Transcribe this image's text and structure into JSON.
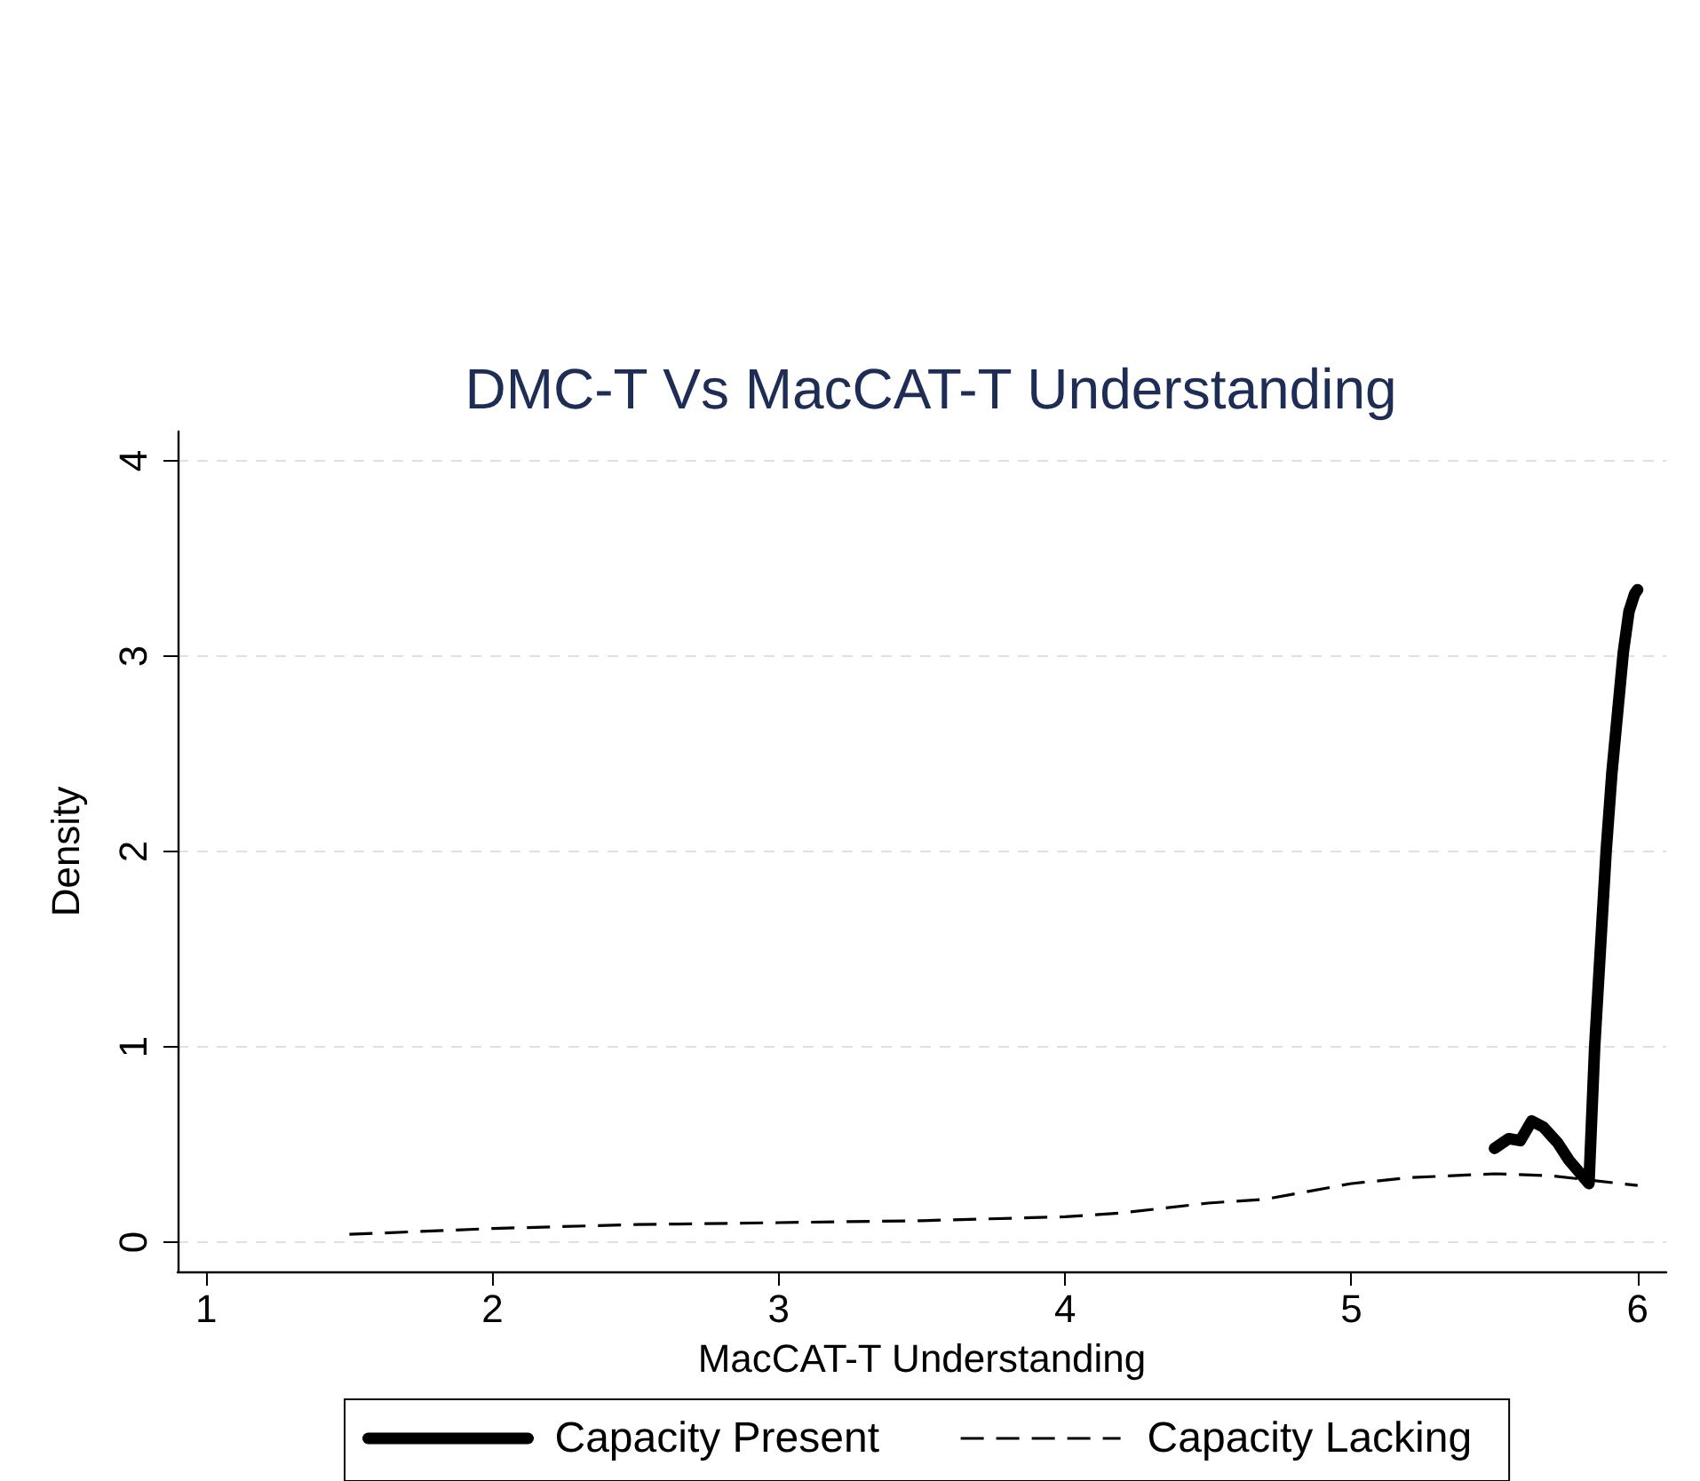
{
  "chart_data": {
    "type": "line",
    "title": "DMC-T Vs MacCAT-T Understanding",
    "xlabel": "MacCAT-T Understanding",
    "ylabel": "Density",
    "series": [
      {
        "name": "Capacity Present",
        "color": "#000000",
        "line_style": "solid",
        "x": [
          5.5,
          5.55,
          5.59,
          5.63,
          5.67,
          5.72,
          5.76,
          5.83,
          5.85,
          5.87,
          5.89,
          5.91,
          5.93,
          5.95,
          5.97,
          5.99,
          6.0
        ],
        "values": [
          0.48,
          0.53,
          0.52,
          0.62,
          0.59,
          0.51,
          0.42,
          0.3,
          1.0,
          1.5,
          2.0,
          2.4,
          2.71,
          3.02,
          3.23,
          3.32,
          3.34
        ]
      },
      {
        "name": "Capacity Lacking",
        "color": "#000000",
        "line_style": "dashed",
        "x": [
          1.5,
          2,
          2.5,
          3,
          3.5,
          4,
          4.2,
          4.5,
          4.7,
          5,
          5.2,
          5.5,
          5.7,
          6.0
        ],
        "values": [
          0.04,
          0.07,
          0.09,
          0.1,
          0.11,
          0.13,
          0.15,
          0.2,
          0.22,
          0.3,
          0.33,
          0.35,
          0.34,
          0.29
        ]
      }
    ],
    "xlim": [
      0.9,
      6.1
    ],
    "xticks": [
      1,
      2,
      3,
      4,
      5,
      6
    ],
    "ylim": [
      -0.15,
      4.15
    ],
    "yticks": [
      0,
      1,
      2,
      3,
      4
    ],
    "grid": "y",
    "legend": "bottom",
    "marker": "none"
  }
}
